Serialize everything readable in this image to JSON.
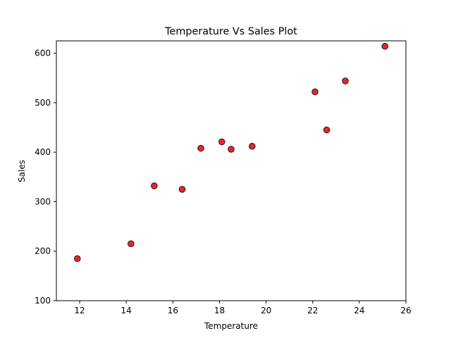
{
  "chart_data": {
    "type": "scatter",
    "title": "Temperature Vs Sales Plot",
    "xlabel": "Temperature",
    "ylabel": "Sales",
    "xlim": [
      11,
      26
    ],
    "ylim": [
      100,
      625
    ],
    "xticks": [
      12,
      14,
      16,
      18,
      20,
      22,
      24,
      26
    ],
    "yticks": [
      100,
      200,
      300,
      400,
      500,
      600
    ],
    "grid": false,
    "legend": "none",
    "marker_color": "#e8262a",
    "marker_edge_color": "#1a1a1a",
    "x": [
      11.9,
      14.2,
      15.2,
      16.4,
      17.2,
      18.1,
      18.5,
      19.4,
      22.1,
      22.6,
      23.4,
      25.1
    ],
    "y": [
      185,
      215,
      332,
      325,
      408,
      421,
      406,
      412,
      522,
      445,
      544,
      614
    ]
  }
}
